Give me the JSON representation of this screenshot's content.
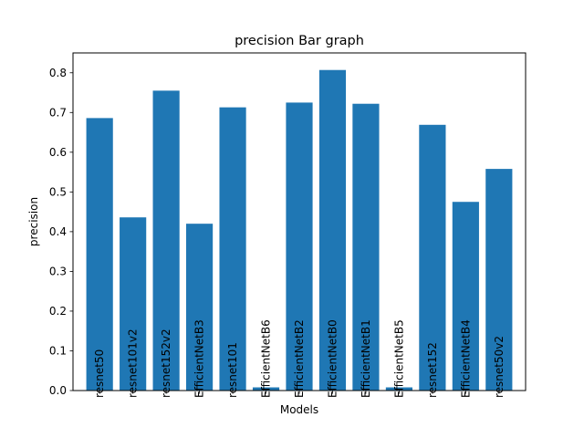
{
  "chart_data": {
    "type": "bar",
    "title": "precision Bar graph",
    "xlabel": "Models",
    "ylabel": "precision",
    "categories": [
      "resnet50",
      "resnet101v2",
      "resnet152v2",
      "EfficientNetB3",
      "resnet101",
      "EfficientNetB6",
      "EfficientNetB2",
      "EfficientNetB0",
      "EfficientNetB1",
      "EfficientNetB5",
      "resnet152",
      "EfficientNetB4",
      "resnet50v2"
    ],
    "values": [
      0.686,
      0.436,
      0.755,
      0.42,
      0.713,
      0.008,
      0.725,
      0.807,
      0.722,
      0.008,
      0.669,
      0.475,
      0.558
    ],
    "ylim": [
      0,
      0.85
    ],
    "yticks": [
      "0.0",
      "0.1",
      "0.2",
      "0.3",
      "0.4",
      "0.5",
      "0.6",
      "0.7",
      "0.8"
    ],
    "grid": false,
    "bar_color": "#1f77b4"
  }
}
